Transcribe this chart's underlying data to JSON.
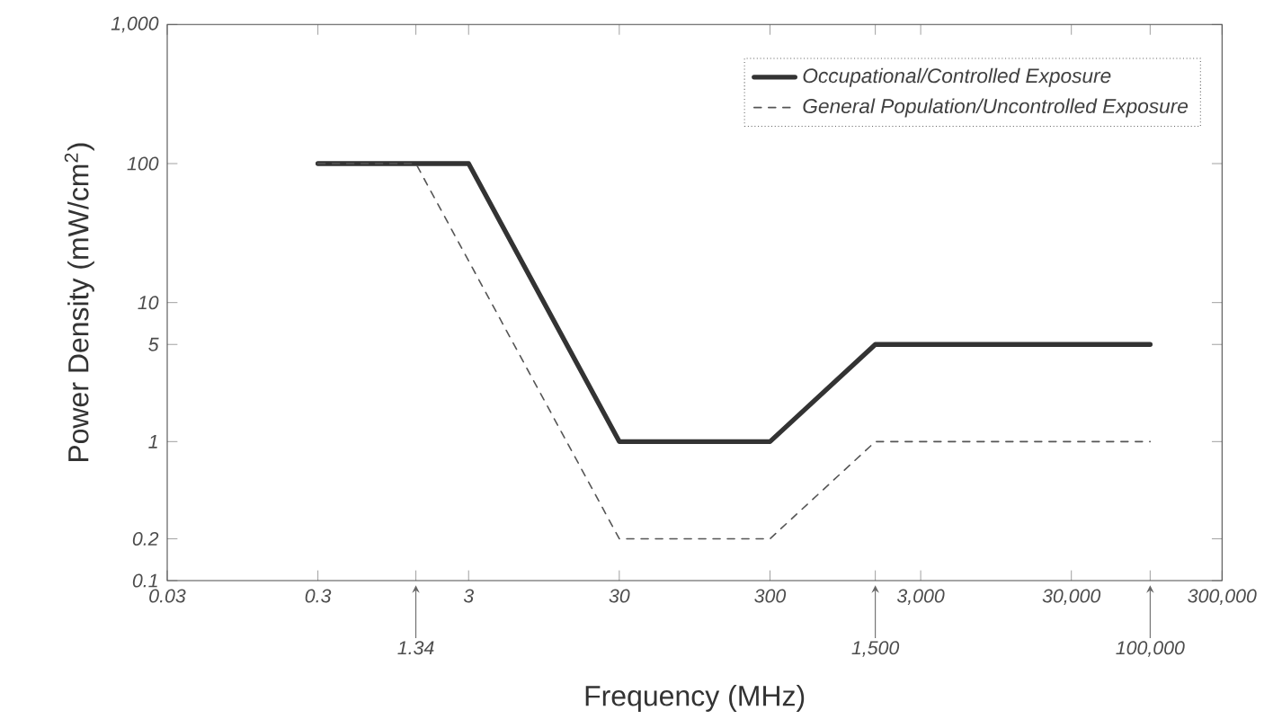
{
  "chart_data": {
    "type": "line",
    "xlabel": "Frequency (MHz)",
    "ylabel": "Power Density (mW/cm$^{2}$)",
    "log": "xy",
    "grid": false,
    "legend": "top right",
    "marker": "none",
    "xlim": [
      0.03,
      300000
    ],
    "ylim": [
      0.1,
      1000
    ],
    "xticks": [
      0.03,
      0.3,
      {
        "value": 1.34,
        "label": null
      },
      3,
      30,
      300,
      {
        "value": 1500,
        "label": null
      },
      {
        "value": 3000,
        "label": "3,000"
      },
      {
        "value": 30000,
        "label": "30,000"
      },
      {
        "value": 100000,
        "label": null
      },
      {
        "value": 300000,
        "label": "300,000"
      }
    ],
    "ref_lines": [
      {
        "axis": "x",
        "value": 1.34,
        "label": "1.34",
        "color": "#666666"
      },
      {
        "axis": "x",
        "value": 1500,
        "label": "1,500",
        "color": "#666666"
      },
      {
        "axis": "x",
        "value": 100000,
        "label": "100,000",
        "color": "#666666"
      }
    ],
    "yticks": [
      0.1,
      0.2,
      1,
      5,
      10,
      100,
      {
        "value": 1000,
        "label": "1,000"
      }
    ],
    "series": [
      {
        "name": "Occupational/Controlled Exposure",
        "color": "#333333",
        "line_style": "solid",
        "x": [
          0.3,
          3,
          30,
          300,
          1500,
          100000
        ],
        "values": [
          100,
          100,
          1,
          1,
          5,
          5
        ]
      },
      {
        "name": "General Population/Uncontrolled Exposure",
        "color": "#555555",
        "line_style": "dashed",
        "x": [
          0.3,
          1.34,
          30,
          300,
          1500,
          100000
        ],
        "values": [
          100,
          100,
          0.2,
          0.2,
          1,
          1
        ]
      }
    ]
  }
}
